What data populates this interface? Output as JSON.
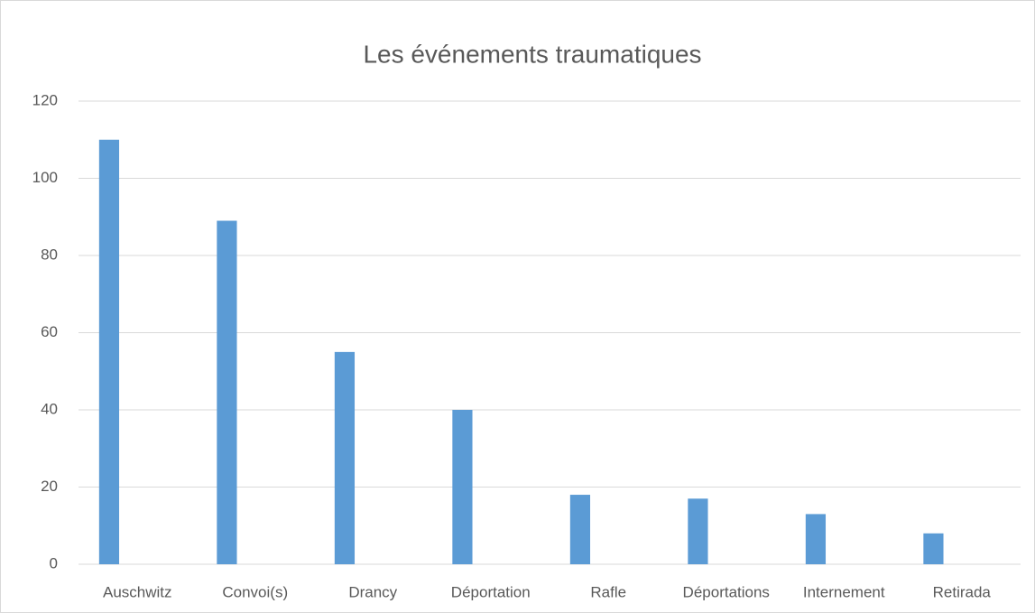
{
  "chart_data": {
    "type": "bar",
    "title": "Les événements traumatiques",
    "categories": [
      "Auschwitz",
      "Convoi(s)",
      "Drancy",
      "Déportation",
      "Rafle",
      "Déportations",
      "Internement",
      "Retirada"
    ],
    "values": [
      110,
      89,
      55,
      40,
      18,
      17,
      13,
      8
    ],
    "color": "#5b9bd5",
    "ylim": [
      0,
      120
    ],
    "yticks": [
      0,
      20,
      40,
      60,
      80,
      100,
      120
    ],
    "grid": true
  }
}
